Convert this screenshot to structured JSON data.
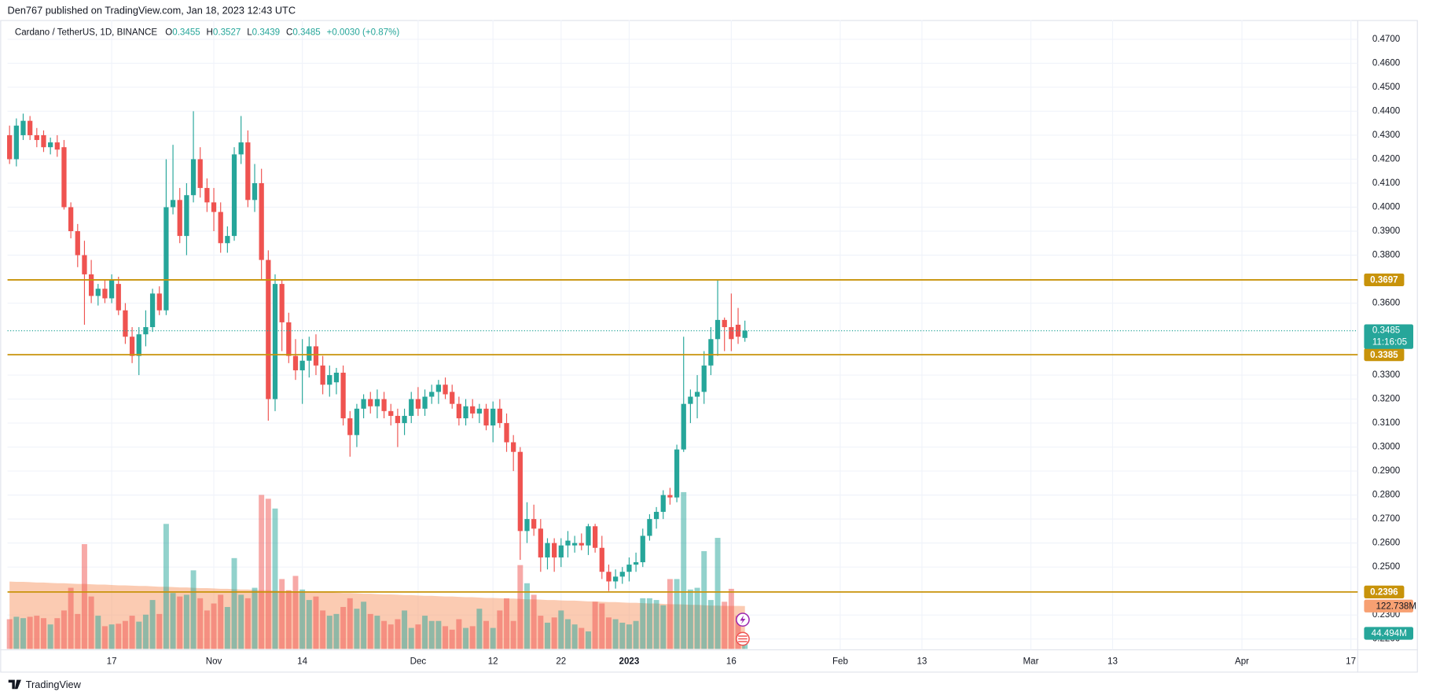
{
  "header": "Den767 published on TradingView.com, Jan 18, 2023 12:43 UTC",
  "footer": "TradingView",
  "chart_data": {
    "type": "candlestick",
    "symbol": "Cardano / TetherUS, 1D, BINANCE",
    "ohlc_letters": [
      "O",
      "H",
      "L",
      "C"
    ],
    "change": "+0.0030 (+0.87%)",
    "countdown": "11:16:05",
    "up_color": "#26a69a",
    "down_color": "#ef5350",
    "ohlc": [
      [
        0.43,
        0.434,
        0.418,
        0.42
      ],
      [
        0.42,
        0.437,
        0.417,
        0.434
      ],
      [
        0.43,
        0.439,
        0.428,
        0.436
      ],
      [
        0.436,
        0.438,
        0.428,
        0.43
      ],
      [
        0.43,
        0.433,
        0.425,
        0.428
      ],
      [
        0.43,
        0.432,
        0.423,
        0.425
      ],
      [
        0.425,
        0.429,
        0.422,
        0.427
      ],
      [
        0.427,
        0.43,
        0.421,
        0.424
      ],
      [
        0.425,
        0.428,
        0.399,
        0.4
      ],
      [
        0.4,
        0.402,
        0.387,
        0.39
      ],
      [
        0.39,
        0.393,
        0.375,
        0.38
      ],
      [
        0.38,
        0.386,
        0.351,
        0.372
      ],
      [
        0.372,
        0.378,
        0.36,
        0.363
      ],
      [
        0.363,
        0.368,
        0.359,
        0.366
      ],
      [
        0.366,
        0.37,
        0.36,
        0.362
      ],
      [
        0.362,
        0.372,
        0.36,
        0.37
      ],
      [
        0.368,
        0.371,
        0.355,
        0.357
      ],
      [
        0.357,
        0.36,
        0.343,
        0.346
      ],
      [
        0.346,
        0.35,
        0.335,
        0.338
      ],
      [
        0.338,
        0.35,
        0.33,
        0.347
      ],
      [
        0.347,
        0.357,
        0.342,
        0.35
      ],
      [
        0.35,
        0.366,
        0.348,
        0.364
      ],
      [
        0.364,
        0.367,
        0.355,
        0.357
      ],
      [
        0.357,
        0.42,
        0.355,
        0.4
      ],
      [
        0.4,
        0.426,
        0.397,
        0.403
      ],
      [
        0.403,
        0.408,
        0.385,
        0.388
      ],
      [
        0.388,
        0.41,
        0.38,
        0.405
      ],
      [
        0.405,
        0.44,
        0.402,
        0.42
      ],
      [
        0.42,
        0.425,
        0.404,
        0.408
      ],
      [
        0.408,
        0.412,
        0.398,
        0.402
      ],
      [
        0.402,
        0.408,
        0.39,
        0.398
      ],
      [
        0.398,
        0.402,
        0.381,
        0.385
      ],
      [
        0.385,
        0.392,
        0.381,
        0.388
      ],
      [
        0.388,
        0.425,
        0.386,
        0.422
      ],
      [
        0.422,
        0.438,
        0.418,
        0.427
      ],
      [
        0.427,
        0.432,
        0.4,
        0.403
      ],
      [
        0.403,
        0.418,
        0.398,
        0.41
      ],
      [
        0.41,
        0.416,
        0.37,
        0.378
      ],
      [
        0.378,
        0.382,
        0.311,
        0.32
      ],
      [
        0.32,
        0.372,
        0.315,
        0.368
      ],
      [
        0.368,
        0.37,
        0.34,
        0.352
      ],
      [
        0.352,
        0.356,
        0.335,
        0.338
      ],
      [
        0.338,
        0.345,
        0.328,
        0.332
      ],
      [
        0.332,
        0.345,
        0.318,
        0.336
      ],
      [
        0.336,
        0.346,
        0.329,
        0.342
      ],
      [
        0.342,
        0.347,
        0.33,
        0.334
      ],
      [
        0.334,
        0.338,
        0.322,
        0.326
      ],
      [
        0.326,
        0.334,
        0.321,
        0.33
      ],
      [
        0.327,
        0.333,
        0.322,
        0.331
      ],
      [
        0.331,
        0.334,
        0.309,
        0.312
      ],
      [
        0.312,
        0.315,
        0.296,
        0.305
      ],
      [
        0.305,
        0.318,
        0.3,
        0.316
      ],
      [
        0.316,
        0.322,
        0.312,
        0.32
      ],
      [
        0.32,
        0.323,
        0.314,
        0.317
      ],
      [
        0.317,
        0.324,
        0.312,
        0.32
      ],
      [
        0.32,
        0.323,
        0.312,
        0.315
      ],
      [
        0.315,
        0.318,
        0.309,
        0.313
      ],
      [
        0.313,
        0.316,
        0.3,
        0.31
      ],
      [
        0.31,
        0.316,
        0.305,
        0.313
      ],
      [
        0.313,
        0.323,
        0.31,
        0.32
      ],
      [
        0.32,
        0.325,
        0.313,
        0.316
      ],
      [
        0.316,
        0.324,
        0.313,
        0.321
      ],
      [
        0.321,
        0.326,
        0.318,
        0.323
      ],
      [
        0.323,
        0.328,
        0.318,
        0.326
      ],
      [
        0.326,
        0.329,
        0.32,
        0.322
      ],
      [
        0.323,
        0.326,
        0.316,
        0.318
      ],
      [
        0.318,
        0.321,
        0.309,
        0.312
      ],
      [
        0.312,
        0.32,
        0.309,
        0.317
      ],
      [
        0.317,
        0.32,
        0.312,
        0.314
      ],
      [
        0.314,
        0.318,
        0.31,
        0.316
      ],
      [
        0.316,
        0.318,
        0.307,
        0.309
      ],
      [
        0.309,
        0.319,
        0.302,
        0.316
      ],
      [
        0.316,
        0.32,
        0.308,
        0.31
      ],
      [
        0.31,
        0.314,
        0.298,
        0.302
      ],
      [
        0.302,
        0.305,
        0.29,
        0.298
      ],
      [
        0.298,
        0.3,
        0.253,
        0.265
      ],
      [
        0.265,
        0.277,
        0.26,
        0.27
      ],
      [
        0.27,
        0.276,
        0.263,
        0.266
      ],
      [
        0.266,
        0.27,
        0.248,
        0.254
      ],
      [
        0.254,
        0.262,
        0.249,
        0.26
      ],
      [
        0.26,
        0.262,
        0.248,
        0.254
      ],
      [
        0.254,
        0.262,
        0.25,
        0.259
      ],
      [
        0.259,
        0.265,
        0.254,
        0.261
      ],
      [
        0.259,
        0.263,
        0.256,
        0.26
      ],
      [
        0.26,
        0.264,
        0.257,
        0.259
      ],
      [
        0.259,
        0.268,
        0.255,
        0.267
      ],
      [
        0.267,
        0.268,
        0.256,
        0.258
      ],
      [
        0.258,
        0.263,
        0.245,
        0.248
      ],
      [
        0.248,
        0.251,
        0.24,
        0.244
      ],
      [
        0.244,
        0.249,
        0.241,
        0.246
      ],
      [
        0.246,
        0.25,
        0.243,
        0.248
      ],
      [
        0.248,
        0.254,
        0.244,
        0.251
      ],
      [
        0.251,
        0.256,
        0.248,
        0.252
      ],
      [
        0.252,
        0.266,
        0.25,
        0.263
      ],
      [
        0.263,
        0.272,
        0.261,
        0.27
      ],
      [
        0.27,
        0.275,
        0.266,
        0.273
      ],
      [
        0.273,
        0.282,
        0.27,
        0.28
      ],
      [
        0.28,
        0.283,
        0.276,
        0.279
      ],
      [
        0.279,
        0.301,
        0.277,
        0.299
      ],
      [
        0.299,
        0.346,
        0.298,
        0.318
      ],
      [
        0.318,
        0.324,
        0.31,
        0.321
      ],
      [
        0.321,
        0.33,
        0.312,
        0.323
      ],
      [
        0.323,
        0.34,
        0.318,
        0.334
      ],
      [
        0.334,
        0.35,
        0.33,
        0.345
      ],
      [
        0.345,
        0.37,
        0.338,
        0.353
      ],
      [
        0.353,
        0.354,
        0.34,
        0.35
      ],
      [
        0.35,
        0.364,
        0.34,
        0.345
      ],
      [
        0.351,
        0.358,
        0.343,
        0.346
      ],
      [
        0.3455,
        0.3527,
        0.3439,
        0.3485
      ]
    ],
    "volume": {
      "values": [
        85,
        92,
        88,
        92,
        95,
        88,
        70,
        88,
        110,
        175,
        100,
        300,
        150,
        95,
        65,
        70,
        72,
        80,
        95,
        78,
        98,
        140,
        100,
        358,
        160,
        150,
        155,
        225,
        145,
        110,
        130,
        155,
        120,
        260,
        155,
        145,
        175,
        441,
        430,
        402,
        200,
        168,
        209,
        170,
        140,
        150,
        110,
        95,
        100,
        120,
        145,
        115,
        135,
        100,
        95,
        80,
        70,
        85,
        110,
        60,
        70,
        95,
        80,
        80,
        65,
        55,
        85,
        60,
        65,
        115,
        80,
        60,
        110,
        145,
        80,
        240,
        188,
        155,
        95,
        75,
        90,
        110,
        85,
        70,
        60,
        50,
        135,
        130,
        90,
        85,
        75,
        70,
        80,
        145,
        145,
        140,
        125,
        200,
        200,
        449,
        170,
        175,
        280,
        140,
        318,
        135,
        172,
        95,
        44.494
      ],
      "value_label": "44.494M"
    },
    "volume_ma": {
      "values": [
        193,
        192,
        192,
        191,
        190,
        190,
        189,
        188,
        188,
        187,
        186,
        186,
        185,
        184,
        184,
        183,
        182,
        182,
        181,
        180,
        180,
        179,
        178,
        178,
        177,
        176,
        176,
        175,
        174,
        174,
        173,
        172,
        172,
        171,
        170,
        170,
        169,
        168,
        168,
        167,
        166,
        166,
        165,
        164,
        164,
        163,
        162,
        162,
        161,
        160,
        160,
        159,
        158,
        158,
        157,
        156,
        156,
        155,
        154,
        154,
        153,
        152,
        152,
        151,
        150,
        150,
        149,
        148,
        148,
        147,
        146,
        146,
        145,
        144,
        144,
        143,
        142,
        142,
        141,
        140,
        140,
        139,
        138,
        138,
        137,
        136,
        136,
        135,
        134,
        134,
        133,
        132,
        132,
        131,
        130,
        130,
        129,
        128,
        128,
        127,
        126,
        126,
        125,
        124,
        124,
        123,
        123,
        123,
        122.738
      ],
      "value_label": "122.738M",
      "color": "#f7a072"
    },
    "levels": [
      0.3697,
      0.3385,
      0.2396
    ],
    "level_color": "#c8930a",
    "ylim": [
      0.2155,
      0.478
    ],
    "yticks": [
      {
        "value": 0.47,
        "label": "0.4700"
      },
      {
        "value": 0.46,
        "label": "0.4600"
      },
      {
        "value": 0.45,
        "label": "0.4500"
      },
      {
        "value": 0.44,
        "label": "0.4400"
      },
      {
        "value": 0.43,
        "label": "0.4300"
      },
      {
        "value": 0.42,
        "label": "0.4200"
      },
      {
        "value": 0.41,
        "label": "0.4100"
      },
      {
        "value": 0.4,
        "label": "0.4000"
      },
      {
        "value": 0.39,
        "label": "0.3900"
      },
      {
        "value": 0.38,
        "label": "0.3800"
      },
      {
        "value": 0.36,
        "label": "0.3600"
      },
      {
        "value": 0.33,
        "label": "0.3300"
      },
      {
        "value": 0.32,
        "label": "0.3200"
      },
      {
        "value": 0.31,
        "label": "0.3100"
      },
      {
        "value": 0.3,
        "label": "0.3000"
      },
      {
        "value": 0.29,
        "label": "0.2900"
      },
      {
        "value": 0.28,
        "label": "0.2800"
      },
      {
        "value": 0.27,
        "label": "0.2700"
      },
      {
        "value": 0.26,
        "label": "0.2600"
      },
      {
        "value": 0.25,
        "label": "0.2500"
      },
      {
        "value": 0.23,
        "label": "0.2300"
      },
      {
        "value": 0.22,
        "label": "0.2200"
      }
    ],
    "xlim": [
      -0.3,
      198
    ],
    "xticks": [
      {
        "value": 15,
        "label": "17"
      },
      {
        "value": 30,
        "label": "Nov"
      },
      {
        "value": 43,
        "label": "14"
      },
      {
        "value": 60,
        "label": "Dec"
      },
      {
        "value": 71,
        "label": "12"
      },
      {
        "value": 81,
        "label": "22"
      },
      {
        "value": 91,
        "label": "2023"
      },
      {
        "value": 106,
        "label": "16"
      },
      {
        "value": 122,
        "label": "Feb"
      },
      {
        "value": 134,
        "label": "13"
      },
      {
        "value": 150,
        "label": "Mar"
      },
      {
        "value": 162,
        "label": "13"
      },
      {
        "value": 181,
        "label": "Apr"
      },
      {
        "value": 197,
        "label": "17"
      }
    ],
    "grid": true
  }
}
